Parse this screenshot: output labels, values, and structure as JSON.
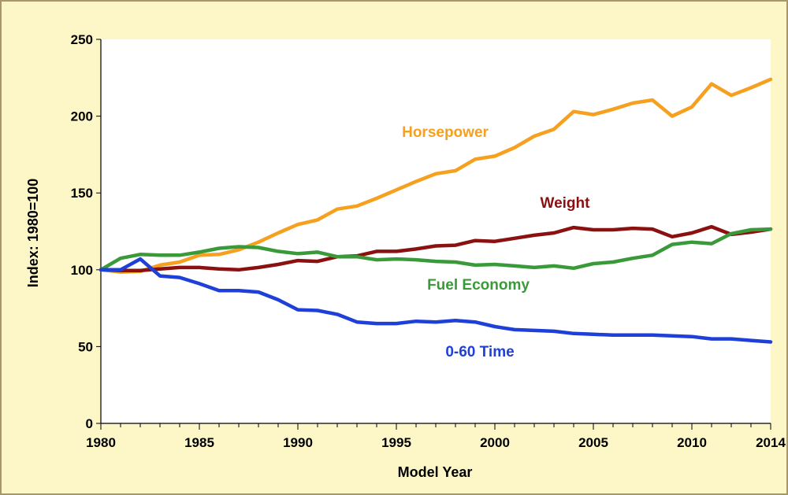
{
  "chart_data": {
    "type": "line",
    "title": "",
    "xlabel": "Model Year",
    "ylabel": "Index: 1980=100",
    "xlim": [
      1980,
      2014
    ],
    "ylim": [
      0,
      250
    ],
    "x_ticks": [
      1980,
      1985,
      1990,
      1995,
      2000,
      2005,
      2010,
      2014
    ],
    "y_ticks": [
      0,
      50,
      100,
      150,
      200,
      250
    ],
    "grid": false,
    "x": [
      1980,
      1981,
      1982,
      1983,
      1984,
      1985,
      1986,
      1987,
      1988,
      1989,
      1990,
      1991,
      1992,
      1993,
      1994,
      1995,
      1996,
      1997,
      1998,
      1999,
      2000,
      2001,
      2002,
      2003,
      2004,
      2005,
      2006,
      2007,
      2008,
      2009,
      2010,
      2011,
      2012,
      2013,
      2014
    ],
    "series": [
      {
        "name": "Horsepower",
        "color": "#F5A01E",
        "values": [
          100,
          98.5,
          99,
          103,
          105,
          109.5,
          110,
          113,
          118,
          124,
          129.5,
          132.5,
          139.5,
          141.5,
          146.5,
          152,
          157.5,
          162.5,
          164.5,
          172,
          174,
          179.5,
          187,
          191.5,
          203,
          201,
          204.5,
          208.5,
          210.5,
          200,
          206,
          221,
          213.5,
          218.5,
          224
        ]
      },
      {
        "name": "Weight",
        "color": "#8B1010",
        "values": [
          100,
          99.5,
          99.5,
          100.5,
          101.5,
          101.5,
          100.5,
          100,
          101.5,
          103.5,
          106,
          105.5,
          108.5,
          109,
          112,
          112,
          113.5,
          115.5,
          116,
          119,
          118.5,
          120.5,
          122.5,
          124,
          127.5,
          126,
          126,
          127,
          126.5,
          121.5,
          124,
          128,
          123,
          124.5,
          126.5
        ]
      },
      {
        "name": "Fuel Economy",
        "color": "#3A9A3A",
        "values": [
          100,
          107.5,
          110,
          109.5,
          109.5,
          111.5,
          114,
          115,
          114.5,
          112,
          110.5,
          111.5,
          108.5,
          108.5,
          106.5,
          107,
          106.5,
          105.5,
          105,
          103,
          103.5,
          102.5,
          101.5,
          102.5,
          101,
          104,
          105,
          107.5,
          109.5,
          116.5,
          118,
          117,
          123.5,
          126,
          126.5
        ]
      },
      {
        "name": "0-60 Time",
        "color": "#1E3FD8",
        "values": [
          100,
          100,
          107,
          96,
          95,
          91,
          86.5,
          86.5,
          85.5,
          80.5,
          74,
          73.5,
          71,
          66,
          65,
          65,
          66.5,
          66,
          67,
          66,
          63,
          61,
          60.5,
          60,
          58.5,
          58,
          57.5,
          57.5,
          57.5,
          57,
          56.5,
          55,
          55,
          54,
          53
        ]
      }
    ]
  }
}
